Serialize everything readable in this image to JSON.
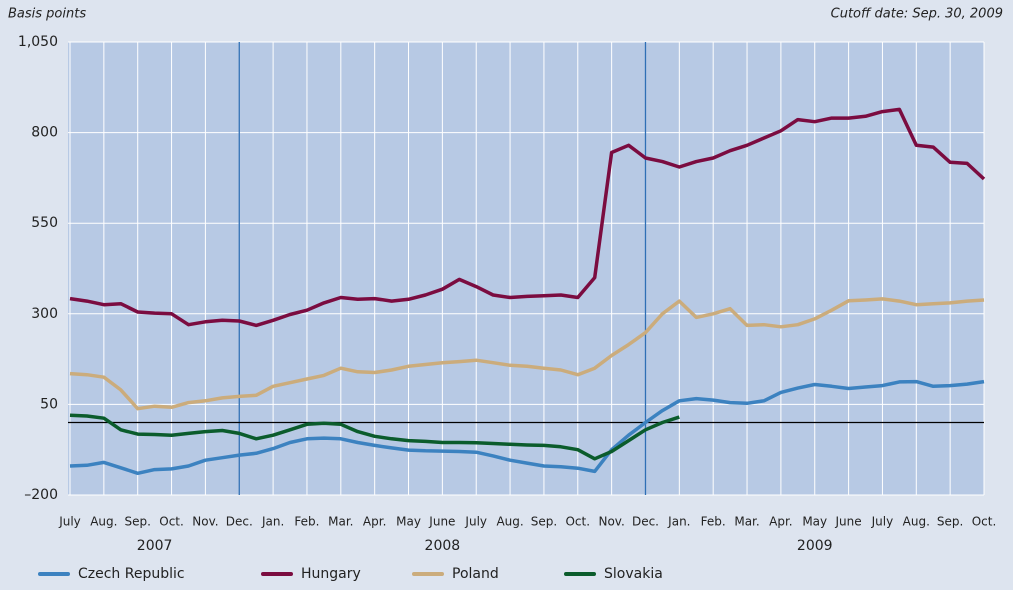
{
  "chart_data": {
    "type": "line",
    "y_axis_label": "Basis points",
    "note": "Cutoff date: Sep. 30, 2009",
    "categories": [
      "July",
      null,
      "Aug.",
      null,
      "Sep.",
      null,
      "Oct.",
      null,
      "Nov.",
      null,
      "Dec.",
      null,
      "Jan.",
      null,
      "Feb.",
      null,
      "Mar.",
      null,
      "Apr.",
      null,
      "May",
      null,
      "June",
      null,
      "July",
      null,
      "Aug.",
      null,
      "Sep.",
      null,
      "Oct.",
      null,
      "Nov.",
      null,
      "Dec.",
      null,
      "Jan.",
      null,
      "Feb.",
      null,
      "Mar.",
      null,
      "Apr.",
      null,
      "May",
      null,
      "June",
      null,
      "July",
      null,
      "Aug.",
      null,
      "Sep.",
      null,
      "Oct."
    ],
    "years": [
      "2007",
      "2008",
      "2009"
    ],
    "series": [
      {
        "name": "Czech Republic",
        "color": "#3c82c0",
        "values": [
          -120,
          -118,
          -110,
          -125,
          -140,
          -130,
          -128,
          -120,
          -104,
          -97,
          -90,
          -85,
          -72,
          -55,
          -45,
          -43,
          -45,
          -55,
          -63,
          -70,
          -76,
          -78,
          -79,
          -80,
          -82,
          -92,
          -104,
          -112,
          -120,
          -122,
          -126,
          -135,
          -75,
          -35,
          0,
          33,
          60,
          66,
          62,
          55,
          53,
          60,
          83,
          95,
          105,
          100,
          94,
          98,
          102,
          112,
          113,
          100,
          102,
          106,
          113
        ]
      },
      {
        "name": "Hungary",
        "color": "#7b0c40",
        "values": [
          342,
          335,
          325,
          328,
          305,
          302,
          300,
          270,
          278,
          282,
          280,
          268,
          282,
          298,
          310,
          330,
          345,
          340,
          342,
          335,
          340,
          352,
          368,
          395,
          375,
          352,
          345,
          348,
          350,
          352,
          345,
          400,
          745,
          765,
          730,
          720,
          705,
          720,
          730,
          750,
          765,
          785,
          805,
          836,
          830,
          840,
          840,
          845,
          858,
          864,
          765,
          760,
          718,
          715,
          672
        ]
      },
      {
        "name": "Poland",
        "color": "#cbac7c",
        "values": [
          135,
          132,
          125,
          90,
          38,
          45,
          42,
          55,
          60,
          68,
          72,
          75,
          100,
          110,
          120,
          130,
          150,
          140,
          138,
          145,
          155,
          160,
          165,
          168,
          172,
          165,
          158,
          155,
          150,
          145,
          132,
          150,
          185,
          215,
          248,
          300,
          335,
          290,
          300,
          314,
          268,
          270,
          264,
          270,
          286,
          310,
          336,
          338,
          341,
          335,
          325,
          328,
          330,
          335,
          338
        ]
      },
      {
        "name": "Slovakia",
        "color": "#0b5c2c",
        "values": [
          20,
          18,
          12,
          -20,
          -32,
          -33,
          -35,
          -30,
          -25,
          -22,
          -30,
          -45,
          -35,
          -20,
          -5,
          -2,
          -5,
          -25,
          -38,
          -45,
          -50,
          -52,
          -55,
          -55,
          -56,
          -58,
          -60,
          -62,
          -63,
          -67,
          -75,
          -100,
          -80,
          -50,
          -20,
          0,
          15,
          null,
          null,
          null,
          null,
          null,
          null,
          null,
          null,
          null,
          null,
          null,
          null,
          null,
          null,
          null,
          null,
          null,
          null
        ]
      }
    ],
    "ylim": [
      -200,
      1050
    ],
    "yticks": [
      {
        "value": -200,
        "label": "–200"
      },
      50,
      300,
      550,
      800,
      {
        "value": 1050,
        "label": "1,050"
      }
    ],
    "grid": true,
    "legend": "bottom"
  }
}
